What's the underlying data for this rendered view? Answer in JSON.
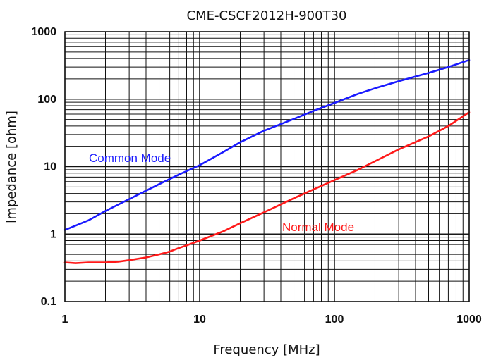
{
  "chart_data": {
    "type": "line",
    "title": "CME-CSCF2012H-900T30",
    "xlabel": "Frequency [MHz]",
    "ylabel": "Impedance [ohm]",
    "xscale": "log",
    "yscale": "log",
    "xlim": [
      1,
      1000
    ],
    "ylim": [
      0.1,
      1000
    ],
    "grid": true,
    "legend": "none (series labelled inline)",
    "x_ticks": [
      "1",
      "10",
      "100",
      "1000"
    ],
    "y_ticks": [
      "0.1",
      "1",
      "10",
      "100",
      "1000"
    ],
    "series": [
      {
        "name": "Common Mode",
        "color": "#1a1aff",
        "x": [
          1,
          1.5,
          2,
          3,
          5,
          7,
          10,
          15,
          20,
          30,
          50,
          70,
          100,
          150,
          200,
          300,
          500,
          700,
          1000
        ],
        "y": [
          1.15,
          1.6,
          2.2,
          3.3,
          5.5,
          7.6,
          10.5,
          16.5,
          23,
          34,
          51,
          67,
          88,
          120,
          145,
          185,
          245,
          300,
          380
        ]
      },
      {
        "name": "Normal Mode",
        "color": "#ff1a1a",
        "x": [
          1,
          1.2,
          1.5,
          2,
          2.5,
          3,
          4,
          5,
          6,
          7,
          8,
          10,
          15,
          20,
          30,
          50,
          70,
          100,
          150,
          200,
          300,
          500,
          700,
          1000
        ],
        "y": [
          0.38,
          0.37,
          0.38,
          0.38,
          0.39,
          0.41,
          0.45,
          0.5,
          0.55,
          0.62,
          0.68,
          0.8,
          1.1,
          1.45,
          2.1,
          3.4,
          4.6,
          6.3,
          9,
          12,
          18,
          28,
          40,
          64
        ]
      }
    ]
  }
}
